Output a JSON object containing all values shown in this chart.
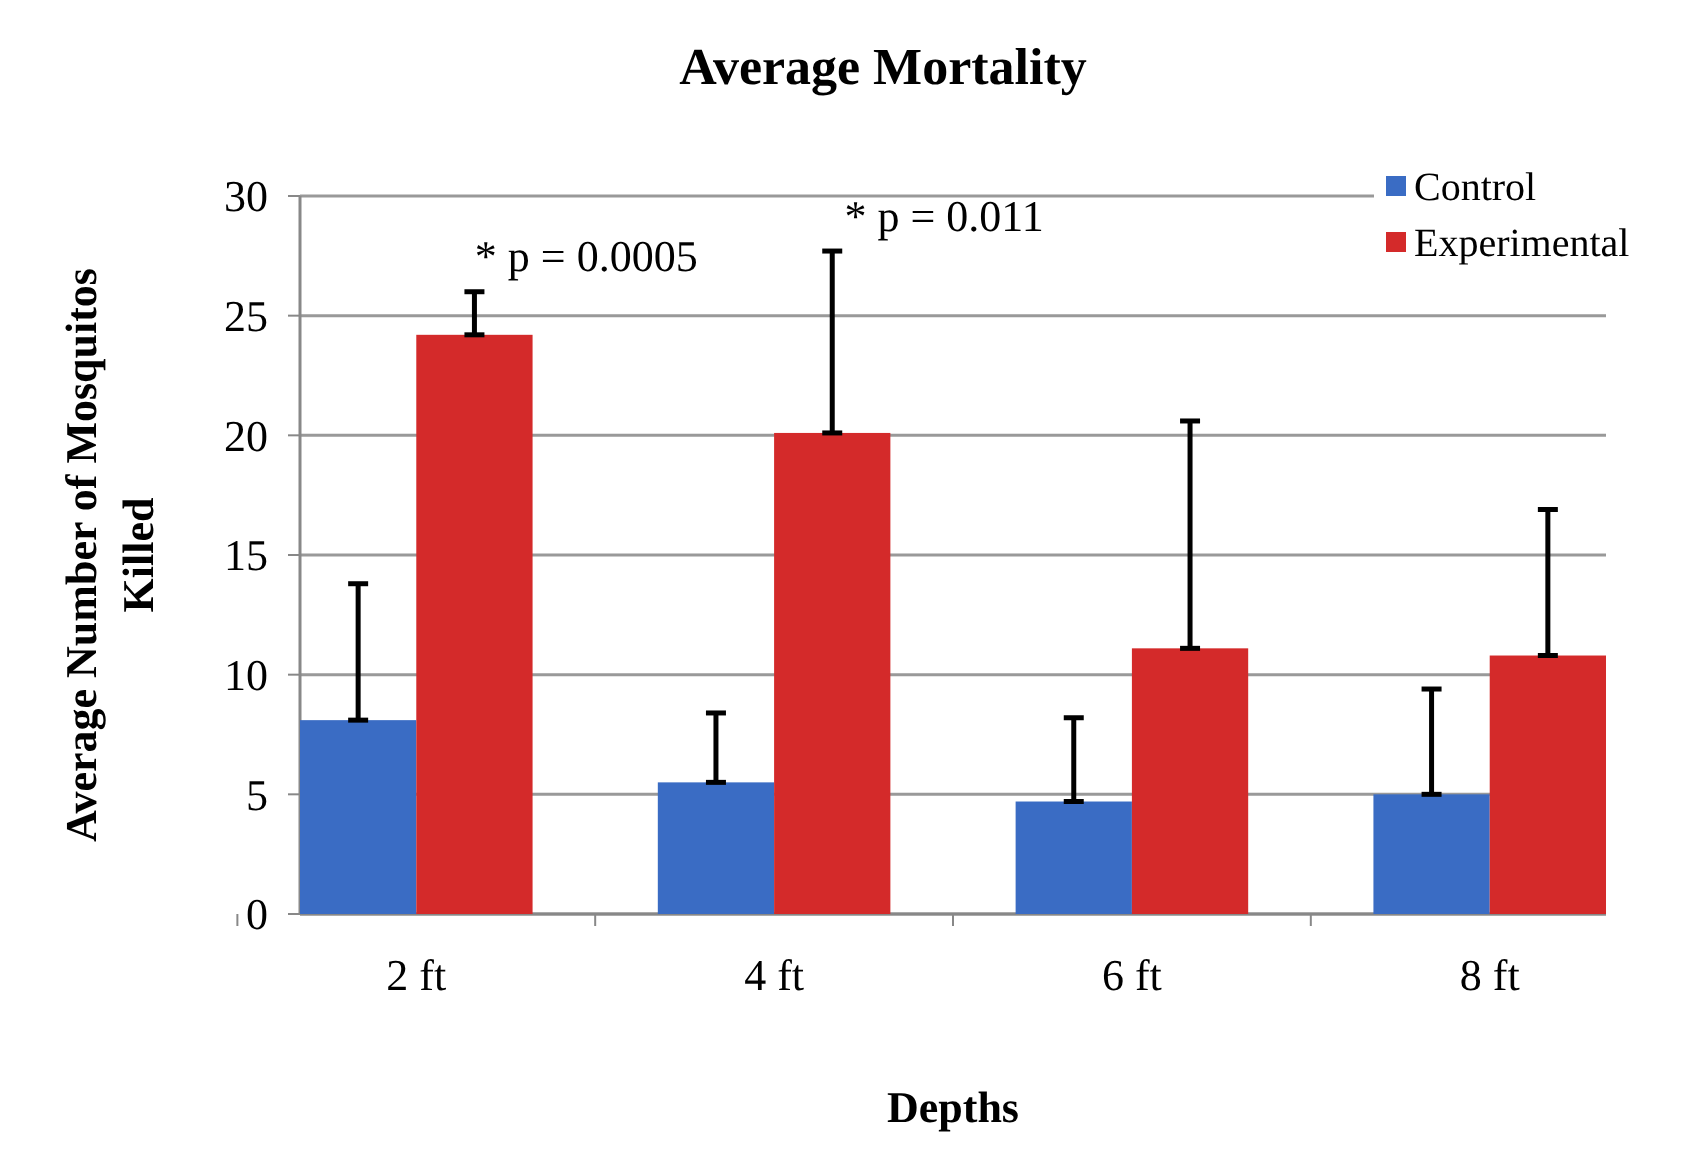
{
  "chart_data": {
    "type": "bar",
    "title": "Average Mortality",
    "xlabel": "Depths",
    "ylabel": "Average Number of Mosquitos Killed",
    "categories": [
      "2 ft",
      "4 ft",
      "6 ft",
      "8 ft"
    ],
    "series": [
      {
        "name": "Control",
        "color": "#3a6cc4",
        "values": [
          8.1,
          5.5,
          4.7,
          5.0
        ],
        "errors": [
          [
            8.1,
            13.8
          ],
          [
            5.5,
            8.4
          ],
          [
            4.7,
            8.2
          ],
          [
            5.0,
            9.4
          ]
        ]
      },
      {
        "name": "Experimental",
        "color": "#d42a2a",
        "values": [
          24.2,
          20.1,
          11.1,
          10.8
        ],
        "errors": [
          [
            24.2,
            26.0
          ],
          [
            20.1,
            27.7
          ],
          [
            11.1,
            20.6
          ],
          [
            10.8,
            16.9
          ]
        ]
      }
    ],
    "ylim": [
      0,
      30
    ],
    "yticks": [
      0,
      5,
      10,
      15,
      20,
      25,
      30
    ],
    "grid": "y",
    "legend": "top right",
    "annotations": [
      "* p = 0.0005",
      "* p = 0.011"
    ]
  }
}
